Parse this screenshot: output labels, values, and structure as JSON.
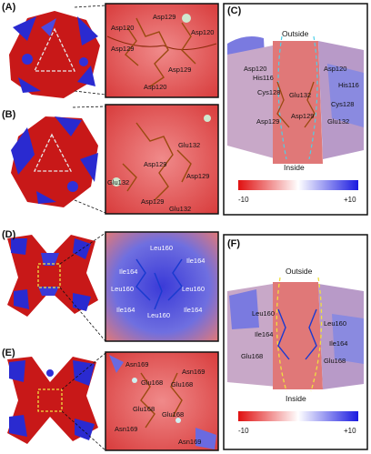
{
  "panels": {
    "a": {
      "letter": "(A)"
    },
    "b": {
      "letter": "(B)"
    },
    "c": {
      "letter": "(C)"
    },
    "d": {
      "letter": "(D)"
    },
    "e": {
      "letter": "(E)"
    },
    "f": {
      "letter": "(F)"
    }
  },
  "inset_a": {
    "labels": [
      "Asp120",
      "Asp129",
      "Asp120",
      "Asp129",
      "Asp129",
      "Asp120"
    ]
  },
  "inset_b": {
    "labels": [
      "Glu132",
      "Asp129",
      "Glu132",
      "Asp129",
      "Asp129",
      "Glu132"
    ]
  },
  "inset_d": {
    "labels": [
      "Leu160",
      "Ile164",
      "Ile164",
      "Leu160",
      "Leu160",
      "Ile164",
      "Leu160",
      "Ile164"
    ]
  },
  "inset_e": {
    "labels": [
      "Asn169",
      "Asn169",
      "Glu168",
      "Glu168",
      "Glu168",
      "Glu168",
      "Asn169",
      "Asn169"
    ]
  },
  "panel_c": {
    "outside": "Outside",
    "inside": "Inside",
    "labels": [
      "Asp120",
      "His116",
      "Cys128",
      "Glu132",
      "Asp129",
      "Asp120",
      "His116",
      "Cys128",
      "Glu132",
      "Asp129"
    ],
    "scale_min": "-10",
    "scale_max": "+10"
  },
  "panel_f": {
    "outside": "Outside",
    "inside": "Inside",
    "labels": [
      "Leu160",
      "Ile164",
      "Glu168",
      "Leu160",
      "Ile164",
      "Glu168"
    ],
    "scale_min": "-10",
    "scale_max": "+10"
  }
}
